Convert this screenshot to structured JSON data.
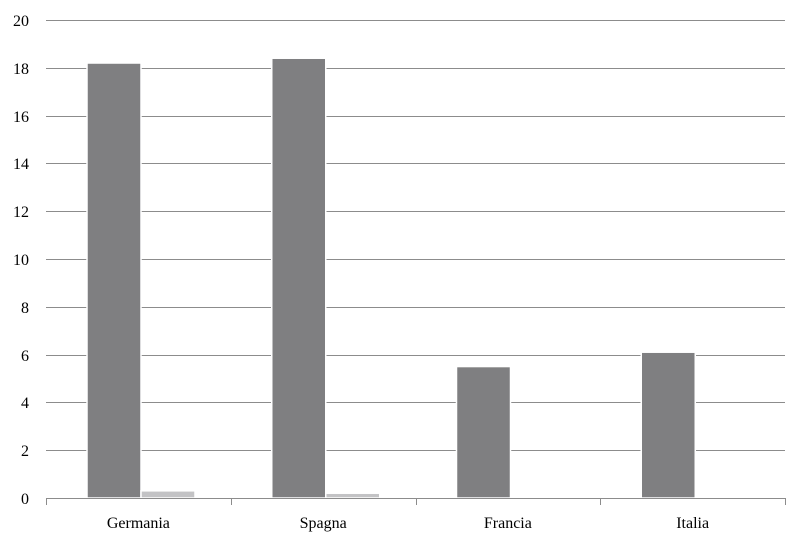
{
  "chart_data": {
    "type": "bar",
    "title": "",
    "xlabel": "",
    "ylabel": "",
    "categories": [
      "Germania",
      "Spagna",
      "Francia",
      "Italia"
    ],
    "series": [
      {
        "values": [
          18.2,
          18.4,
          5.5,
          6.1
        ],
        "color": "#7f7f81"
      },
      {
        "values": [
          0.3,
          0.2,
          0,
          0
        ],
        "color": "#c3c3c5"
      }
    ],
    "ylim": [
      0,
      20
    ],
    "yticks": [
      "0",
      "2",
      "4",
      "6",
      "8",
      "10",
      "12",
      "14",
      "16",
      "18",
      "20"
    ],
    "grid": true,
    "legend": "none"
  }
}
